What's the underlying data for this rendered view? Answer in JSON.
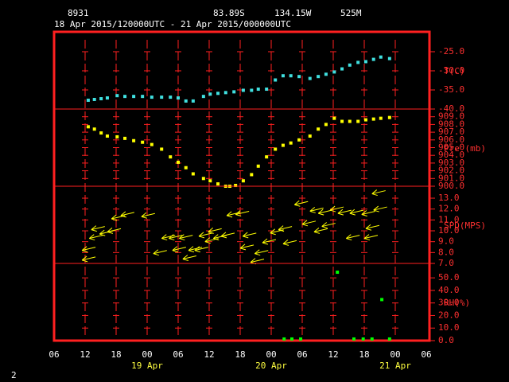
{
  "header": {
    "station": "8931",
    "lat": "83.89S",
    "lon": "134.15W",
    "elev": "525M",
    "period": "18 Apr 2015/120000UTC - 21 Apr 2015/000000UTC"
  },
  "page_number": "2",
  "time_axis": {
    "xlim": [
      6,
      78
    ],
    "xticks": [
      {
        "value": 6,
        "label": "06"
      },
      12,
      18,
      {
        "value": 24,
        "label": "00"
      },
      {
        "value": 30,
        "label": "06"
      },
      {
        "value": 36,
        "label": "12"
      },
      {
        "value": 42,
        "label": "18"
      },
      {
        "value": 48,
        "label": "00"
      },
      {
        "value": 54,
        "label": "06"
      },
      {
        "value": 60,
        "label": "12"
      },
      {
        "value": 66,
        "label": "18"
      },
      {
        "value": 72,
        "label": "00"
      },
      {
        "value": 78,
        "label": "06"
      }
    ],
    "dates": [
      {
        "value": 24,
        "label": "19 Apr"
      },
      {
        "value": 48,
        "label": "20 Apr"
      },
      {
        "value": 72,
        "label": "21 Apr"
      }
    ]
  },
  "chart_data": [
    {
      "type": "scatter",
      "ylabel": "T(C)",
      "color": "#40e0e0",
      "ylim": [
        -40,
        -19.8
      ],
      "yticks": [
        {
          "value": -25,
          "label": "-25.0"
        },
        {
          "value": -30,
          "label": "-30.0"
        },
        {
          "value": -35,
          "label": "-35.0"
        },
        {
          "value": -40,
          "label": "-40.0"
        }
      ],
      "x": [
        12.6,
        13.8,
        15.1,
        16.3,
        18.2,
        19.7,
        21.4,
        23.1,
        24.9,
        26.8,
        28.5,
        30.0,
        31.5,
        32.9,
        34.9,
        36.2,
        37.7,
        39.2,
        40.8,
        42.6,
        44.2,
        45.5,
        47.1,
        48.8,
        50.3,
        51.8,
        53.4,
        55.5,
        57.1,
        58.6,
        60.2,
        61.7,
        63.2,
        64.8,
        66.3,
        67.8,
        69.2,
        70.9
      ],
      "values": [
        -37.7,
        -37.5,
        -37.3,
        -37.1,
        -36.5,
        -36.7,
        -36.7,
        -36.7,
        -36.9,
        -36.9,
        -36.9,
        -37.1,
        -37.9,
        -37.9,
        -36.7,
        -36.1,
        -35.9,
        -35.7,
        -35.5,
        -35.1,
        -35.1,
        -34.8,
        -34.8,
        -32.4,
        -31.3,
        -31.3,
        -31.5,
        -32.0,
        -31.5,
        -30.9,
        -30.3,
        -29.5,
        -28.5,
        -27.8,
        -27.6,
        -27.0,
        -26.4,
        -26.8
      ]
    },
    {
      "type": "scatter",
      "ylabel": "Pre (mb)",
      "color": "#ffff00",
      "ylim": [
        900,
        910
      ],
      "yticks": [
        {
          "value": 909,
          "label": "909.0"
        },
        {
          "value": 908,
          "label": "908.0"
        },
        {
          "value": 907,
          "label": "907.0"
        },
        {
          "value": 906,
          "label": "906.0"
        },
        {
          "value": 905,
          "label": "905.0"
        },
        {
          "value": 904,
          "label": "904.0"
        },
        {
          "value": 903,
          "label": "903.0"
        },
        {
          "value": 902,
          "label": "902.0"
        },
        {
          "value": 901,
          "label": "901.0"
        },
        {
          "value": 900,
          "label": "900.0"
        }
      ],
      "x": [
        12.6,
        13.8,
        15.1,
        16.3,
        18.2,
        19.7,
        21.4,
        23.1,
        24.9,
        26.8,
        28.5,
        30.0,
        31.5,
        32.9,
        34.9,
        36.2,
        37.7,
        39.2,
        40.0,
        41.1,
        42.6,
        44.2,
        45.5,
        47.1,
        48.8,
        50.3,
        51.8,
        53.4,
        55.5,
        57.1,
        58.6,
        60.2,
        61.7,
        63.2,
        64.8,
        66.3,
        67.8,
        69.2,
        70.9
      ],
      "values": [
        907.7,
        907.4,
        906.9,
        906.5,
        906.4,
        906.2,
        905.9,
        905.7,
        905.4,
        904.8,
        903.8,
        903.1,
        902.4,
        901.6,
        901.0,
        900.7,
        900.3,
        900.0,
        900.0,
        900.1,
        900.7,
        901.5,
        902.6,
        903.8,
        904.8,
        905.3,
        905.6,
        906.0,
        906.5,
        907.4,
        908.0,
        908.8,
        908.4,
        908.4,
        908.4,
        908.6,
        908.7,
        908.8,
        908.9
      ]
    },
    {
      "type": "vector",
      "ylabel": "SPD(MPS)",
      "color": "#ffff00",
      "ylim": [
        7,
        14.1
      ],
      "yticks": [
        {
          "value": 13,
          "label": "13.0"
        },
        {
          "value": 12,
          "label": "12.0"
        },
        {
          "value": 11,
          "label": "11.0"
        },
        {
          "value": 10,
          "label": "10.0"
        },
        {
          "value": 9,
          "label": "9.0"
        },
        {
          "value": 8,
          "label": "8.0"
        },
        {
          "value": 7,
          "label": "7.0"
        }
      ],
      "x": [
        11.4,
        11.4,
        12.8,
        13.2,
        14.8,
        16.3,
        17.1,
        18.9,
        22.9,
        25.2,
        26.8,
        28.2,
        28.9,
        30.2,
        30.9,
        32.0,
        33.2,
        34.0,
        35.2,
        35.8,
        36.8,
        38.3,
        39.4,
        41.1,
        42.0,
        42.5,
        44.0,
        44.8,
        46.3,
        47.8,
        49.4,
        50.3,
        52.5,
        54.0,
        55.5,
        56.3,
        57.1,
        57.8,
        59.4,
        60.9,
        62.5,
        63.2,
        65.5,
        66.0,
        66.3,
        67.5,
        67.8
      ],
      "values": [
        7.3,
        8.2,
        9.3,
        10.1,
        9.7,
        9.9,
        11.1,
        11.4,
        11.3,
        7.9,
        9.3,
        9.3,
        8.2,
        9.3,
        7.4,
        8.2,
        8.2,
        9.5,
        9.0,
        9.9,
        9.3,
        9.5,
        11.4,
        11.5,
        8.4,
        9.5,
        7.1,
        7.9,
        8.9,
        9.8,
        10.1,
        8.8,
        12.4,
        10.6,
        11.8,
        9.9,
        11.6,
        10.4,
        11.9,
        11.6,
        9.3,
        11.6,
        11.5,
        9.3,
        10.2,
        13.4,
        11.9
      ]
    },
    {
      "type": "scatter",
      "ylabel": "RH(%)",
      "color": "#00ff00",
      "ylim": [
        0,
        61.5
      ],
      "yticks": [
        {
          "value": 50,
          "label": "50.0"
        },
        {
          "value": 40,
          "label": "40.0"
        },
        {
          "value": 30,
          "label": "30.0"
        },
        {
          "value": 20,
          "label": "20.0"
        },
        {
          "value": 10,
          "label": "10.0"
        },
        {
          "value": 0,
          "label": "0.0"
        }
      ],
      "x": [
        50.5,
        52.0,
        53.7,
        60.8,
        64.0,
        65.8,
        67.5,
        69.4,
        70.9
      ],
      "values": [
        1.3,
        1.3,
        1.3,
        54.5,
        1.3,
        1.3,
        1.3,
        32.7,
        1.3
      ]
    }
  ]
}
